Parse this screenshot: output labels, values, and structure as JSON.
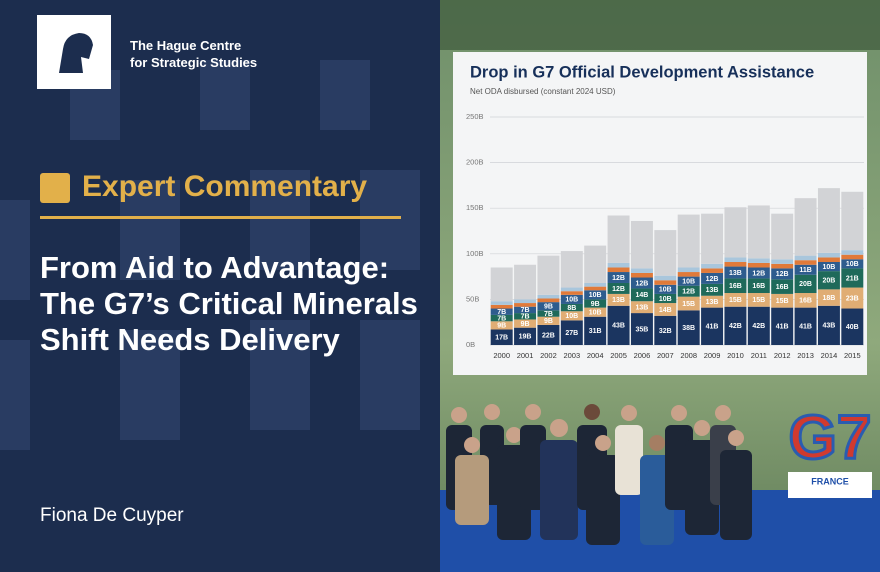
{
  "brand": {
    "lines": [
      "The Hague Centre",
      "for Strategic Studies"
    ]
  },
  "article": {
    "kicker": "Expert Commentary",
    "title": "From Aid to Advantage: The G7’s Critical Minerals Shift Needs Delivery",
    "author": "Fiona De Cuyper"
  },
  "photo": {
    "sign": "G7",
    "sign_caption": "FRANCE"
  },
  "chart_data": {
    "type": "bar",
    "stacked": true,
    "title": "Drop in G7 Official Development Assistance",
    "subtitle": "Net ODA disbursed (constant 2024 USD)",
    "categories": [
      "2000",
      "2001",
      "2002",
      "2003",
      "2004",
      "2005",
      "2006",
      "2007",
      "2008",
      "2009",
      "2010",
      "2011",
      "2012",
      "2013",
      "2014",
      "2015"
    ],
    "ylim": [
      0,
      250
    ],
    "yticks": [
      {
        "value": 0,
        "label": "0B"
      },
      {
        "value": 50,
        "label": "50B"
      },
      {
        "value": 100,
        "label": "100B"
      },
      {
        "value": 150,
        "label": "150B"
      },
      {
        "value": 200,
        "label": "200B"
      },
      {
        "value": 250,
        "label": "250B"
      }
    ],
    "grid": true,
    "series": [
      {
        "color": "#1b3560",
        "values": [
          17,
          19,
          22,
          27,
          31,
          43,
          35,
          32,
          38,
          41,
          42,
          42,
          41,
          41,
          43,
          40
        ],
        "value_labels": [
          "17B",
          "19B",
          "22B",
          "27B",
          "31B",
          "43B",
          "35B",
          "32B",
          "38B",
          "41B",
          "42B",
          "42B",
          "41B",
          "41B",
          "43B",
          "40B"
        ]
      },
      {
        "color": "#e0ad74",
        "values": [
          9,
          9,
          9,
          10,
          10,
          13,
          13,
          14,
          15,
          13,
          15,
          15,
          15,
          16,
          18,
          23
        ],
        "value_labels": [
          "9B",
          "9B",
          "9B",
          "10B",
          "10B",
          "13B",
          "13B",
          "14B",
          "15B",
          "13B",
          "15B",
          "15B",
          "15B",
          "16B",
          "18B",
          "23B"
        ]
      },
      {
        "color": "#1f6a5a",
        "values": [
          7,
          7,
          7,
          8,
          9,
          12,
          14,
          10,
          12,
          13,
          16,
          16,
          16,
          20,
          20,
          21
        ],
        "value_labels": [
          "7B",
          "7B",
          "7B",
          "8B",
          "9B",
          "12B",
          "14B",
          "10B",
          "12B",
          "13B",
          "16B",
          "16B",
          "16B",
          "20B",
          "20B",
          "21B"
        ]
      },
      {
        "color": "#2e5c8e",
        "values": [
          7,
          7,
          9,
          10,
          10,
          12,
          12,
          10,
          10,
          12,
          13,
          12,
          12,
          11,
          10,
          10
        ],
        "value_labels": [
          "7B",
          "7B",
          "9B",
          "10B",
          "10B",
          "12B",
          "12B",
          "10B",
          "10B",
          "12B",
          "13B",
          "12B",
          "12B",
          "11B",
          "10B",
          "10B"
        ]
      },
      {
        "color": "#e07a3a",
        "values": [
          4,
          4,
          4,
          4,
          4,
          5,
          5,
          5,
          5,
          5,
          5,
          5,
          5,
          5,
          5,
          5
        ]
      },
      {
        "color": "#a9c6dc",
        "values": [
          4,
          4,
          4,
          4,
          4,
          5,
          5,
          5,
          5,
          5,
          5,
          5,
          5,
          5,
          5,
          5
        ]
      },
      {
        "color": "#d2d3d6",
        "values": [
          37,
          38,
          43,
          40,
          41,
          52,
          52,
          50,
          58,
          55,
          55,
          58,
          50,
          63,
          71,
          64
        ]
      }
    ]
  }
}
